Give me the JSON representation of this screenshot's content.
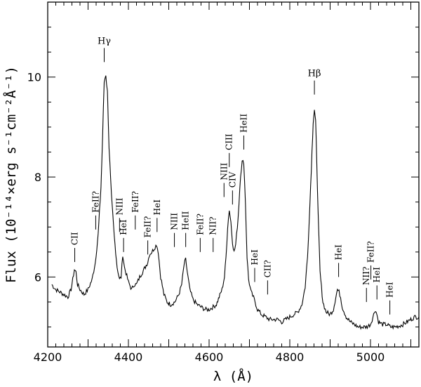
{
  "chart_data": {
    "type": "line",
    "xlabel": "λ (Å)",
    "ylabel": "Flux (10⁻¹⁴×erg s⁻¹cm⁻²Å⁻¹)",
    "xlim": [
      4200,
      5120
    ],
    "ylim": [
      4.6,
      11.5
    ],
    "xticks": [
      4200,
      4400,
      4600,
      4800,
      5000
    ],
    "yticks": [
      6,
      8,
      10
    ],
    "xtick_labels": [
      "4200",
      "4400",
      "4600",
      "4800",
      "5000"
    ],
    "ytick_labels": [
      "6",
      "8",
      "10"
    ],
    "series": [
      {
        "x": [
          4210,
          4220,
          4230,
          4240,
          4250,
          4258,
          4262,
          4266,
          4270,
          4274,
          4280,
          4290,
          4300,
          4310,
          4318,
          4325,
          4332,
          4336,
          4340,
          4344,
          4348,
          4352,
          4358,
          4365,
          4372,
          4378,
          4382,
          4386,
          4390,
          4400,
          4408,
          4414,
          4420,
          4428,
          4435,
          4442,
          4448,
          4452,
          4458,
          4462,
          4466,
          4470,
          4474,
          4480,
          4488,
          4496,
          4505,
          4515,
          4525,
          4532,
          4538,
          4542,
          4546,
          4552,
          4560,
          4570,
          4580,
          4590,
          4600,
          4610,
          4618,
          4625,
          4632,
          4638,
          4642,
          4646,
          4650,
          4654,
          4658,
          4662,
          4666,
          4672,
          4678,
          4682,
          4686,
          4690,
          4694,
          4698,
          4704,
          4712,
          4720,
          4730,
          4740,
          4750,
          4760,
          4770,
          4780,
          4790,
          4800,
          4810,
          4820,
          4830,
          4838,
          4844,
          4850,
          4855,
          4858,
          4861,
          4864,
          4867,
          4870,
          4875,
          4882,
          4890,
          4900,
          4908,
          4914,
          4918,
          4922,
          4926,
          4930,
          4940,
          4950,
          4960,
          4970,
          4980,
          4990,
          5000,
          5008,
          5012,
          5016,
          5020,
          5030,
          5040,
          5050,
          5060,
          5070,
          5080,
          5090,
          5100,
          5110,
          5120
        ],
        "y": [
          5.85,
          5.75,
          5.7,
          5.65,
          5.6,
          5.75,
          5.95,
          6.15,
          6.1,
          5.85,
          5.75,
          5.65,
          5.75,
          5.95,
          6.3,
          6.85,
          7.8,
          8.8,
          9.9,
          10.05,
          9.7,
          8.6,
          7.6,
          6.8,
          6.2,
          5.95,
          6.0,
          6.45,
          6.2,
          5.9,
          5.75,
          5.85,
          5.85,
          6.0,
          6.1,
          6.2,
          6.3,
          6.45,
          6.5,
          6.55,
          6.6,
          6.65,
          6.5,
          6.0,
          5.65,
          5.5,
          5.45,
          5.5,
          5.65,
          5.85,
          6.25,
          6.35,
          6.1,
          5.75,
          5.55,
          5.45,
          5.4,
          5.35,
          5.35,
          5.4,
          5.45,
          5.6,
          5.75,
          6.0,
          6.4,
          7.0,
          7.35,
          7.1,
          6.7,
          6.5,
          6.65,
          7.2,
          8.05,
          8.3,
          8.3,
          7.5,
          6.4,
          5.95,
          5.7,
          5.55,
          5.35,
          5.25,
          5.2,
          5.15,
          5.15,
          5.15,
          5.1,
          5.15,
          5.2,
          5.25,
          5.3,
          5.45,
          5.8,
          6.4,
          7.5,
          8.5,
          9.1,
          9.35,
          9.1,
          8.3,
          7.3,
          6.1,
          5.5,
          5.3,
          5.25,
          5.35,
          5.6,
          5.75,
          5.7,
          5.6,
          5.4,
          5.2,
          5.1,
          5.05,
          5.0,
          5.0,
          5.0,
          5.05,
          5.25,
          5.35,
          5.25,
          5.1,
          5.05,
          5.05,
          5.0,
          5.0,
          5.02,
          5.05,
          5.1,
          5.15,
          5.2,
          5.2
        ]
      }
    ],
    "annotations": [
      {
        "text": "CII",
        "x": 4267,
        "y": 6.3
      },
      {
        "text": "FeII?",
        "x": 4319,
        "y": 6.95
      },
      {
        "text": "Hγ",
        "x": 4340,
        "y": 10.3
      },
      {
        "text": "NIII",
        "x": 4378,
        "y": 6.9
      },
      {
        "text": "HeI",
        "x": 4388,
        "y": 6.5
      },
      {
        "text": "FeII?",
        "x": 4417,
        "y": 6.95
      },
      {
        "text": "FeII?",
        "x": 4448,
        "y": 6.45
      },
      {
        "text": "HeI",
        "x": 4471,
        "y": 6.9
      },
      {
        "text": "NIII",
        "x": 4514,
        "y": 6.6
      },
      {
        "text": "HeII",
        "x": 4542,
        "y": 6.6
      },
      {
        "text": "FeII?",
        "x": 4578,
        "y": 6.5
      },
      {
        "text": "NII?",
        "x": 4610,
        "y": 6.5
      },
      {
        "text": "NIII",
        "x": 4637,
        "y": 7.6
      },
      {
        "text": "CIII",
        "x": 4650,
        "y": 8.2
      },
      {
        "text": "CIV",
        "x": 4658,
        "y": 7.45
      },
      {
        "text": "HeII",
        "x": 4686,
        "y": 8.55
      },
      {
        "text": "HeI",
        "x": 4713,
        "y": 5.9
      },
      {
        "text": "CII?",
        "x": 4745,
        "y": 5.65
      },
      {
        "text": "Hβ",
        "x": 4861,
        "y": 9.65
      },
      {
        "text": "HeI",
        "x": 4921,
        "y": 6.0
      },
      {
        "text": "NII?",
        "x": 4990,
        "y": 5.5
      },
      {
        "text": "FeII?",
        "x": 5001,
        "y": 5.95
      },
      {
        "text": "HeI",
        "x": 5016,
        "y": 5.55
      },
      {
        "text": "HeI",
        "x": 5048,
        "y": 5.25
      }
    ]
  }
}
